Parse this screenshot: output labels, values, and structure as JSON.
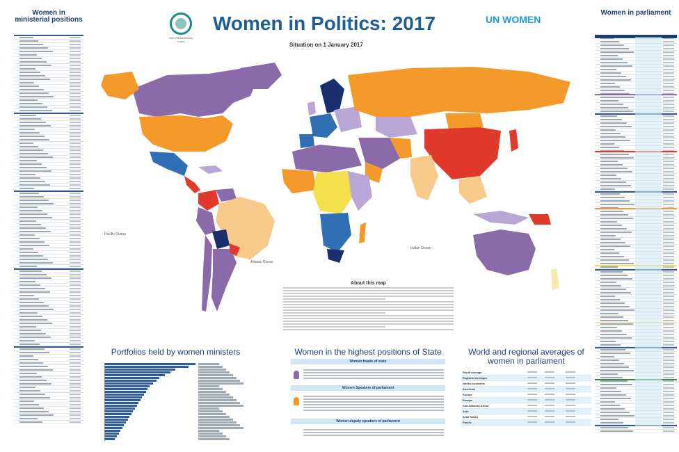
{
  "header": {
    "title": "Women in Politics: 2017",
    "subtitle": "Situation on 1 January 2017",
    "ipu_name": "Inter-Parliamentary Union",
    "unwomen_mark": "UN WOMEN"
  },
  "left_panel": {
    "title": "Women in ministerial positions"
  },
  "right_panel": {
    "title": "Women in parliament"
  },
  "map": {
    "ocean_labels": [
      "Pacific Ocean",
      "Atlantic Ocean",
      "Indian Ocean"
    ],
    "colors": {
      "purple": "#8a6aa8",
      "lavender": "#b7a6d6",
      "orange": "#f39a2a",
      "light_orange": "#f7c98a",
      "red": "#e1392b",
      "yellow": "#f4e04d",
      "navy": "#1a2f6e",
      "blue": "#2f6fb4",
      "light_yellow": "#f6e9a8"
    }
  },
  "about": {
    "title": "About this map"
  },
  "portfolios": {
    "title": "Portfolios held by women ministers",
    "bar_values": [
      100,
      92,
      78,
      72,
      66,
      60,
      57,
      53,
      49,
      47,
      45,
      43,
      41,
      39,
      37,
      35,
      33,
      31,
      29,
      27,
      25,
      23,
      21,
      19,
      17,
      15,
      13,
      11
    ]
  },
  "highest": {
    "title": "Women in the highest positions of State",
    "heads_of_state": "Women heads of state",
    "speakers": "Women Speakers of parliament",
    "deputy_speakers": "Women deputy speakers of parliament"
  },
  "averages": {
    "title": "World and regional averages of women in parliament",
    "rows": [
      "World average",
      "Regional averages",
      "Nordic countries",
      "Americas",
      "Europe",
      "Europe",
      "Sub-Saharan Africa",
      "Asia",
      "Arab States",
      "Pacific"
    ]
  }
}
